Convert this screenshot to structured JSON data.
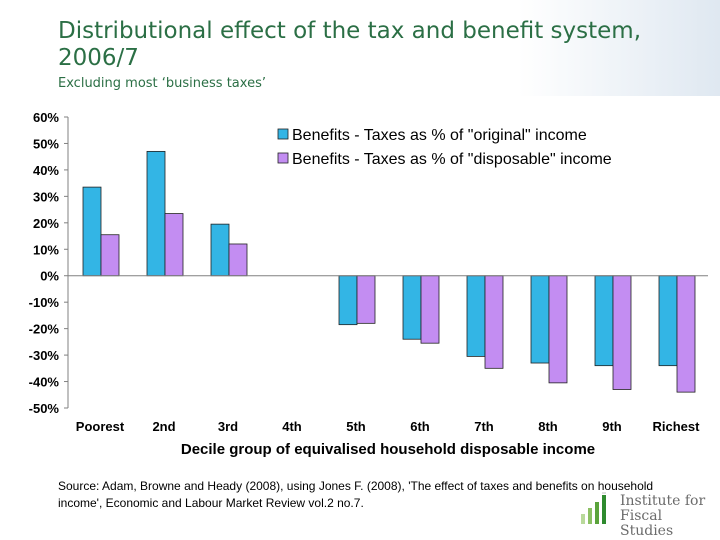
{
  "title": "Distributional effect of the tax and benefit system, 2006/7",
  "subtitle": "Excluding most ‘business taxes’",
  "source": "Source: Adam, Browne and Heady (2008),  using Jones F. (2008), 'The effect of taxes and benefits on household income', Economic and Labour Market Review vol.2 no.7.",
  "logo": {
    "line1": "Institute for",
    "line2": "Fiscal Studies"
  },
  "colors": {
    "series1": "#33b5e5",
    "series2": "#c38df2",
    "title": "#2b6f45"
  },
  "chart_data": {
    "type": "bar",
    "xlabel": "Decile group of equivalised household disposable income",
    "ylabel": "",
    "ylim": [
      -50,
      60
    ],
    "yticks": [
      60,
      50,
      40,
      30,
      20,
      10,
      0,
      -10,
      -20,
      -30,
      -40,
      -50
    ],
    "yticklabels": [
      "60%",
      "50%",
      "40%",
      "30%",
      "20%",
      "10%",
      "0%",
      "-10%",
      "-20%",
      "-30%",
      "-40%",
      "-50%"
    ],
    "categories": [
      "Poorest",
      "2nd",
      "3rd",
      "4th",
      "5th",
      "6th",
      "7th",
      "8th",
      "9th",
      "Richest"
    ],
    "legend_position": "top-right",
    "grid": false,
    "series": [
      {
        "name": "Benefits - Taxes as % of \"original\" income",
        "color": "#33b5e5",
        "values": [
          33.5,
          47,
          19.5,
          null,
          -18.5,
          -24,
          -30.5,
          -33,
          -34,
          -34
        ]
      },
      {
        "name": "Benefits - Taxes as % of \"disposable\" income",
        "color": "#c38df2",
        "values": [
          15.5,
          23.5,
          12,
          null,
          -18,
          -25.5,
          -35,
          -40.5,
          -43,
          -44
        ]
      }
    ]
  }
}
